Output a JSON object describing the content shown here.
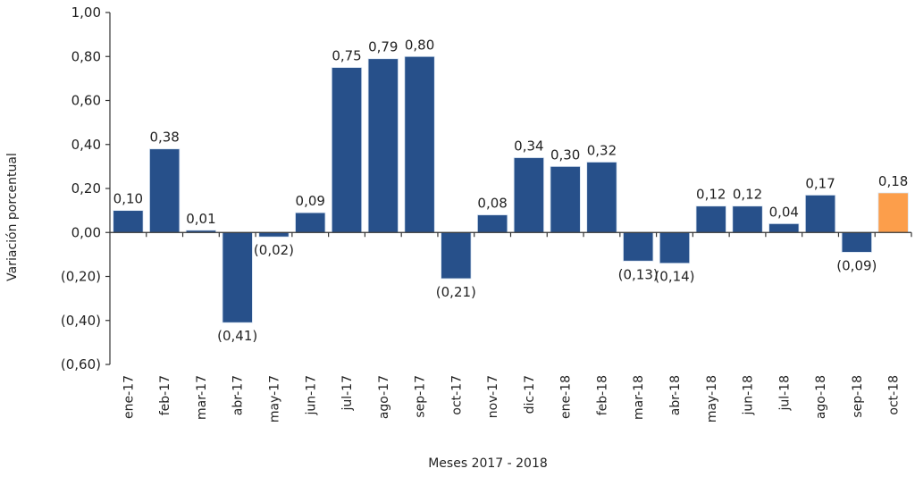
{
  "chart_data": {
    "type": "bar",
    "title": "",
    "xlabel": "Meses 2017 - 2018",
    "ylabel": "Variación porcentual",
    "ylim": [
      -0.6,
      1.0
    ],
    "yticks": [
      1.0,
      0.8,
      0.6,
      0.4,
      0.2,
      0.0,
      -0.2,
      -0.4,
      -0.6
    ],
    "ytick_labels": [
      "1,00",
      "0,80",
      "0,60",
      "0,40",
      "0,20",
      "0,00",
      "(0,20)",
      "(0,40)",
      "(0,60)"
    ],
    "grid": false,
    "legend": "none",
    "categories": [
      "ene-17",
      "feb-17",
      "mar-17",
      "abr-17",
      "may-17",
      "jun-17",
      "jul-17",
      "ago-17",
      "sep-17",
      "oct-17",
      "nov-17",
      "dic-17",
      "ene-18",
      "feb-18",
      "mar-18",
      "abr-18",
      "may-18",
      "jun-18",
      "jul-18",
      "ago-18",
      "sep-18",
      "oct-18"
    ],
    "values": [
      0.1,
      0.38,
      0.01,
      -0.41,
      -0.02,
      0.09,
      0.75,
      0.79,
      0.8,
      -0.21,
      0.08,
      0.34,
      0.3,
      0.32,
      -0.13,
      -0.14,
      0.12,
      0.12,
      0.04,
      0.17,
      -0.09,
      0.18
    ],
    "data_labels": [
      "0,10",
      "0,38",
      "0,01",
      "(0,41)",
      "(0,02)",
      "0,09",
      "0,75",
      "0,79",
      "0,80",
      "(0,21)",
      "0,08",
      "0,34",
      "0,30",
      "0,32",
      "(0,13)",
      "(0,14)",
      "0,12",
      "0,12",
      "0,04",
      "0,17",
      "(0,09)",
      "0,18"
    ],
    "colors": {
      "default": "#27508a",
      "highlight": "#fc9e4b",
      "axis": "#333333"
    },
    "highlight_index": 21
  }
}
